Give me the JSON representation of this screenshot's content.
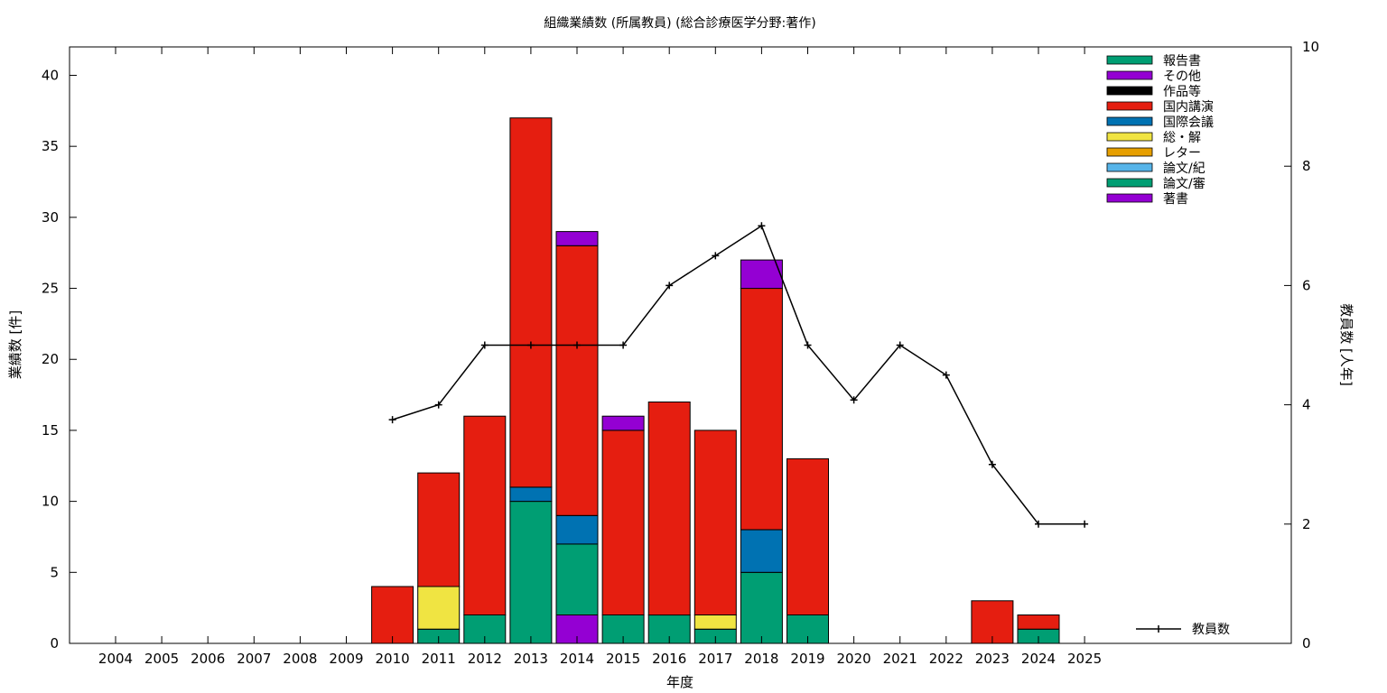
{
  "chart_data": {
    "type": "bar",
    "title": "組織業績数 (所属教員) (総合診療医学分野:著作)",
    "xlabel": "年度",
    "ylabel": "業績数 [件]",
    "y2label": "教員数 [人年]",
    "ylim": [
      0,
      42
    ],
    "y2lim": [
      0,
      10
    ],
    "yticks": [
      "0",
      "5",
      "10",
      "15",
      "20",
      "25",
      "30",
      "35",
      "40"
    ],
    "y2ticks": [
      "0",
      "2",
      "4",
      "6",
      "8",
      "10"
    ],
    "categories": [
      "2004",
      "2005",
      "2006",
      "2007",
      "2008",
      "2009",
      "2010",
      "2011",
      "2012",
      "2013",
      "2014",
      "2015",
      "2016",
      "2017",
      "2018",
      "2019",
      "2020",
      "2021",
      "2022",
      "2023",
      "2024",
      "2025"
    ],
    "stacked": true,
    "grid": false,
    "legend_position": "top-right",
    "series": [
      {
        "name": "著書",
        "color": "#9400d3",
        "values": [
          0,
          0,
          0,
          0,
          0,
          0,
          0,
          0,
          0,
          0,
          2,
          0,
          0,
          0,
          0,
          0,
          0,
          0,
          0,
          0,
          0,
          0
        ]
      },
      {
        "name": "論文/審",
        "color": "#009e73",
        "values": [
          0,
          0,
          0,
          0,
          0,
          0,
          0,
          1,
          2,
          10,
          5,
          2,
          2,
          1,
          5,
          2,
          0,
          0,
          0,
          0,
          1,
          0
        ]
      },
      {
        "name": "論文/紀",
        "color": "#56b4e9",
        "values": [
          0,
          0,
          0,
          0,
          0,
          0,
          0,
          0,
          0,
          0,
          0,
          0,
          0,
          0,
          0,
          0,
          0,
          0,
          0,
          0,
          0,
          0
        ]
      },
      {
        "name": "レター",
        "color": "#e69f00",
        "values": [
          0,
          0,
          0,
          0,
          0,
          0,
          0,
          0,
          0,
          0,
          0,
          0,
          0,
          0,
          0,
          0,
          0,
          0,
          0,
          0,
          0,
          0
        ]
      },
      {
        "name": "総・解",
        "color": "#f0e442",
        "values": [
          0,
          0,
          0,
          0,
          0,
          0,
          0,
          3,
          0,
          0,
          0,
          0,
          0,
          1,
          0,
          0,
          0,
          0,
          0,
          0,
          0,
          0
        ]
      },
      {
        "name": "国際会議",
        "color": "#0072b2",
        "values": [
          0,
          0,
          0,
          0,
          0,
          0,
          0,
          0,
          0,
          1,
          2,
          0,
          0,
          0,
          3,
          0,
          0,
          0,
          0,
          0,
          0,
          0
        ]
      },
      {
        "name": "国内講演",
        "color": "#e51e10",
        "values": [
          0,
          0,
          0,
          0,
          0,
          0,
          4,
          8,
          14,
          26,
          19,
          13,
          15,
          13,
          17,
          11,
          0,
          0,
          0,
          3,
          1,
          0
        ]
      },
      {
        "name": "作品等",
        "color": "#000000",
        "values": [
          0,
          0,
          0,
          0,
          0,
          0,
          0,
          0,
          0,
          0,
          0,
          0,
          0,
          0,
          0,
          0,
          0,
          0,
          0,
          0,
          0,
          0
        ]
      },
      {
        "name": "その他",
        "color": "#9400d3",
        "values": [
          0,
          0,
          0,
          0,
          0,
          0,
          0,
          0,
          0,
          0,
          1,
          1,
          0,
          0,
          2,
          0,
          0,
          0,
          0,
          0,
          0,
          0
        ]
      },
      {
        "name": "報告書",
        "color": "#009e73",
        "values": [
          0,
          0,
          0,
          0,
          0,
          0,
          0,
          0,
          0,
          0,
          0,
          0,
          0,
          0,
          0,
          0,
          0,
          0,
          0,
          0,
          0,
          0
        ]
      }
    ],
    "legend_order": [
      "報告書",
      "その他",
      "作品等",
      "国内講演",
      "国際会議",
      "総・解",
      "レター",
      "論文/紀",
      "論文/審",
      "著書"
    ],
    "line": {
      "name": "教員数",
      "color": "#000000",
      "x": [
        "2010",
        "2011",
        "2012",
        "2013",
        "2014",
        "2015",
        "2016",
        "2017",
        "2018",
        "2019",
        "2020",
        "2021",
        "2022",
        "2023",
        "2024",
        "2025"
      ],
      "values": [
        3.75,
        4.0,
        5.0,
        5.0,
        5.0,
        5.0,
        6.0,
        6.5,
        7.0,
        5.0,
        4.08,
        5.0,
        4.5,
        3.0,
        2.0,
        2.0
      ]
    }
  }
}
